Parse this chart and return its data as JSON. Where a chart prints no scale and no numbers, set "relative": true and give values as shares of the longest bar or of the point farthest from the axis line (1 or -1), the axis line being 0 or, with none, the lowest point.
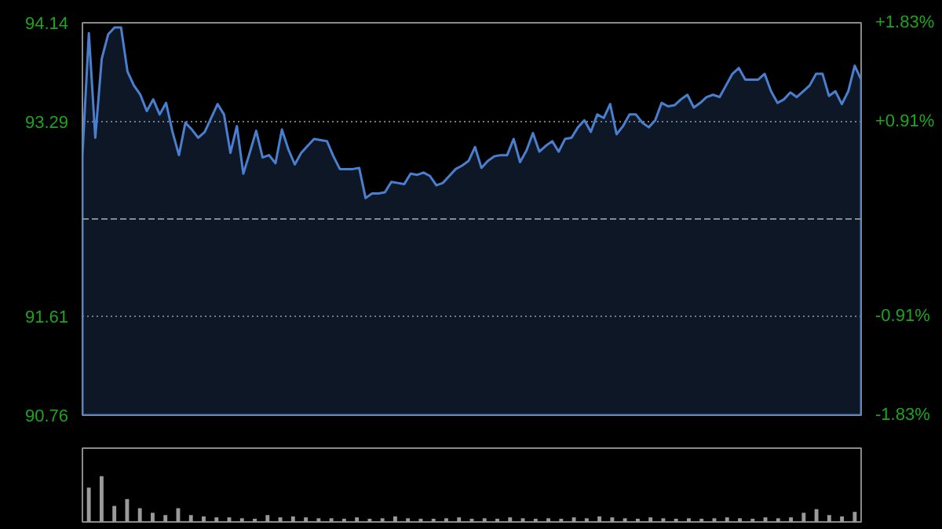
{
  "chart_data": [
    {
      "type": "area",
      "ylim": [
        90.76,
        94.14
      ],
      "categories": [
        null,
        null,
        null,
        null,
        null,
        null,
        null,
        null,
        null,
        null,
        null,
        null,
        null,
        null,
        null,
        null,
        null,
        null,
        null,
        null,
        null,
        null,
        null,
        null,
        null,
        null,
        null,
        null,
        null,
        null,
        null,
        null,
        null,
        null,
        null,
        null,
        null,
        null,
        null,
        null,
        null,
        null,
        null,
        null,
        null,
        null,
        null,
        null,
        null,
        null,
        null,
        null,
        null,
        null,
        null,
        null,
        null,
        null,
        null,
        null,
        null,
        null,
        null,
        null,
        null,
        null,
        null,
        null,
        null,
        null,
        null,
        null,
        null,
        null,
        null,
        null,
        null,
        null,
        null,
        null,
        null,
        null,
        null,
        null,
        null,
        null,
        null,
        null,
        null,
        null,
        null,
        null,
        null,
        null,
        null,
        null,
        null,
        null,
        null,
        null,
        null,
        null,
        null,
        null,
        null,
        null,
        null,
        null,
        null,
        null,
        null,
        null,
        null,
        null,
        null,
        null,
        null,
        null,
        null,
        null,
        null,
        null
      ],
      "yticks": [
        90.76,
        91.61,
        93.29,
        94.14
      ],
      "y2lim": [
        -1.83,
        1.83
      ],
      "y2ticks": [
        {
          "value": -1.83,
          "label": "-1.83%"
        },
        {
          "value": -0.91,
          "label": "-0.91%"
        },
        {
          "value": 0.91,
          "label": "+0.91%"
        },
        {
          "value": 1.83,
          "label": "+1.83%"
        }
      ],
      "ref_lines": [
        {
          "axis": "y",
          "value": 92.45,
          "color": "#7f8c99",
          "line_style": "dashed"
        }
      ],
      "grid": "y",
      "series": [
        {
          "color": "#4a7fd0",
          "values": [
            93.0,
            94.05,
            93.15,
            93.83,
            94.04,
            94.1,
            94.1,
            93.72,
            93.6,
            93.52,
            93.38,
            93.48,
            93.35,
            93.45,
            93.2,
            93.0,
            93.28,
            93.22,
            93.15,
            93.2,
            93.32,
            93.44,
            93.35,
            93.02,
            93.25,
            92.84,
            93.02,
            93.21,
            92.98,
            93.0,
            92.93,
            93.22,
            93.05,
            92.92,
            93.02,
            93.08,
            93.14,
            93.13,
            93.12,
            92.99,
            92.88,
            92.88,
            92.88,
            92.89,
            92.63,
            92.67,
            92.67,
            92.68,
            92.77,
            92.76,
            92.75,
            92.84,
            92.83,
            92.85,
            92.82,
            92.74,
            92.76,
            92.82,
            92.88,
            92.91,
            92.95,
            93.07,
            92.89,
            92.95,
            92.99,
            93.0,
            93.0,
            93.14,
            92.94,
            93.04,
            93.19,
            93.03,
            93.08,
            93.12,
            93.03,
            93.14,
            93.15,
            93.24,
            93.3,
            93.2,
            93.35,
            93.32,
            93.44,
            93.18,
            93.25,
            93.35,
            93.35,
            93.28,
            93.24,
            93.3,
            93.45,
            93.42,
            93.43,
            93.48,
            93.52,
            93.41,
            93.45,
            93.5,
            93.52,
            93.5,
            93.6,
            93.7,
            93.75,
            93.65,
            93.65,
            93.65,
            93.7,
            93.55,
            93.45,
            93.48,
            93.54,
            93.5,
            93.55,
            93.6,
            93.7,
            93.7,
            93.51,
            93.55,
            93.44,
            93.55,
            93.77,
            93.65
          ]
        }
      ]
    },
    {
      "type": "bar",
      "relative": true,
      "categories": [
        null,
        null,
        null,
        null,
        null,
        null,
        null,
        null,
        null,
        null,
        null,
        null,
        null,
        null,
        null,
        null,
        null,
        null,
        null,
        null,
        null,
        null,
        null,
        null,
        null,
        null,
        null,
        null,
        null,
        null,
        null,
        null,
        null,
        null,
        null,
        null,
        null,
        null,
        null,
        null,
        null,
        null,
        null,
        null,
        null,
        null,
        null,
        null,
        null,
        null,
        null,
        null,
        null,
        null,
        null,
        null,
        null,
        null,
        null,
        null,
        null
      ],
      "series": [
        {
          "color": "#9a9a9a",
          "values": [
            0.75,
            1.0,
            0.35,
            0.5,
            0.3,
            0.2,
            0.15,
            0.3,
            0.15,
            0.12,
            0.1,
            0.1,
            0.08,
            0.07,
            0.15,
            0.1,
            0.12,
            0.1,
            0.08,
            0.08,
            0.07,
            0.1,
            0.07,
            0.08,
            0.12,
            0.08,
            0.07,
            0.07,
            0.08,
            0.1,
            0.07,
            0.08,
            0.07,
            0.1,
            0.08,
            0.07,
            0.08,
            0.07,
            0.1,
            0.08,
            0.12,
            0.1,
            0.08,
            0.07,
            0.1,
            0.08,
            0.07,
            0.08,
            0.07,
            0.08,
            0.1,
            0.08,
            0.07,
            0.1,
            0.08,
            0.1,
            0.2,
            0.28,
            0.15,
            0.12,
            0.22
          ]
        }
      ]
    }
  ]
}
